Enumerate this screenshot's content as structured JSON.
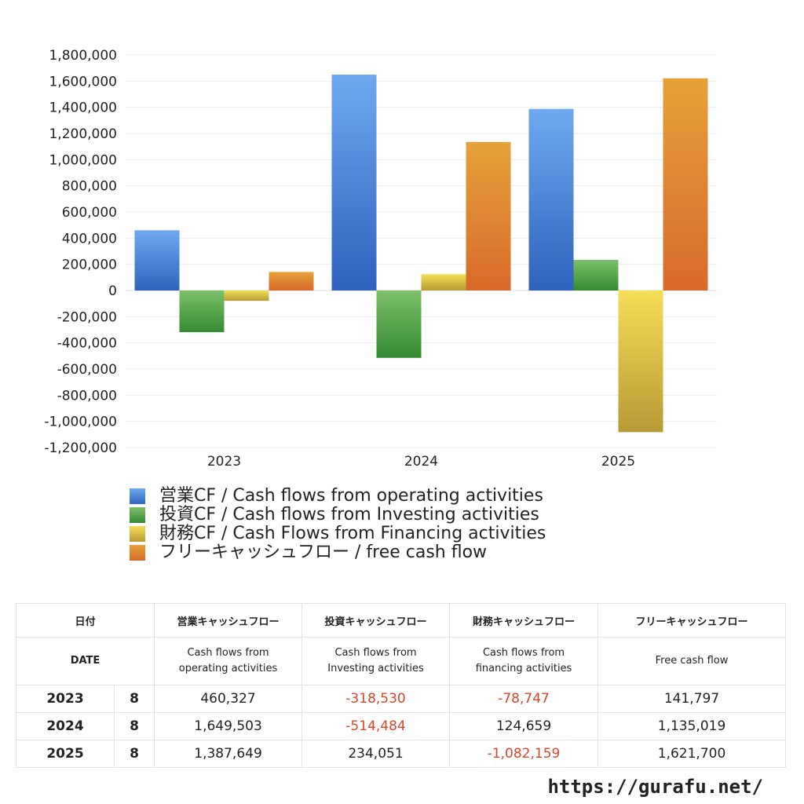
{
  "chart_data": {
    "type": "bar",
    "categories": [
      "2023",
      "2024",
      "2025"
    ],
    "ylim": [
      -1200000,
      1800000
    ],
    "yticks": [
      1800000,
      1600000,
      1400000,
      1200000,
      1000000,
      800000,
      600000,
      400000,
      200000,
      0,
      -200000,
      -400000,
      -600000,
      -800000,
      -1000000,
      -1200000
    ],
    "ytick_labels": [
      "1,800,000",
      "1,600,000",
      "1,400,000",
      "1,200,000",
      "1,000,000",
      "800,000",
      "600,000",
      "400,000",
      "200,000",
      "0",
      "-200,000",
      "-400,000",
      "-600,000",
      "-800,000",
      "-1,000,000",
      "-1,200,000"
    ],
    "grid": true,
    "legend_position": "bottom",
    "series": [
      {
        "name": "営業CF / Cash flows from operating activities",
        "values": [
          460327,
          1649503,
          1387649
        ],
        "color_top": "#6ea9f0",
        "color_bottom": "#2f62bd"
      },
      {
        "name": "投資CF / Cash flows from Investing activities",
        "values": [
          -318530,
          -514484,
          234051
        ],
        "color_top": "#7cc06a",
        "color_bottom": "#358a32"
      },
      {
        "name": "財務CF / Cash Flows from Financing activities",
        "values": [
          -78747,
          124659,
          -1082159
        ],
        "color_top": "#f4df56",
        "color_bottom": "#b89a36"
      },
      {
        "name": "フリーキャッシュフロー / free cash flow",
        "values": [
          141797,
          1135019,
          1621700
        ],
        "color_top": "#e6a23a",
        "color_bottom": "#d8692a"
      }
    ]
  },
  "table": {
    "header_jp": {
      "date": "日付",
      "op": "営業キャッシュフロー",
      "inv": "投資キャッシュフロー",
      "fin": "財務キャッシュフロー",
      "free": "フリーキャッシュフロー"
    },
    "header_en": {
      "date": "DATE",
      "op": "Cash flows from operating activities",
      "inv": "Cash flows from Investing activities",
      "fin": "Cash flows from financing activities",
      "free": "Free cash flow"
    },
    "rows": [
      {
        "year": "2023",
        "month": "8",
        "op": "460,327",
        "inv": "-318,530",
        "fin": "-78,747",
        "free": "141,797"
      },
      {
        "year": "2024",
        "month": "8",
        "op": "1,649,503",
        "inv": "-514,484",
        "fin": "124,659",
        "free": "1,135,019"
      },
      {
        "year": "2025",
        "month": "8",
        "op": "1,387,649",
        "inv": "234,051",
        "fin": "-1,082,159",
        "free": "1,621,700"
      }
    ]
  },
  "footer": {
    "url": "https://gurafu.net/"
  }
}
